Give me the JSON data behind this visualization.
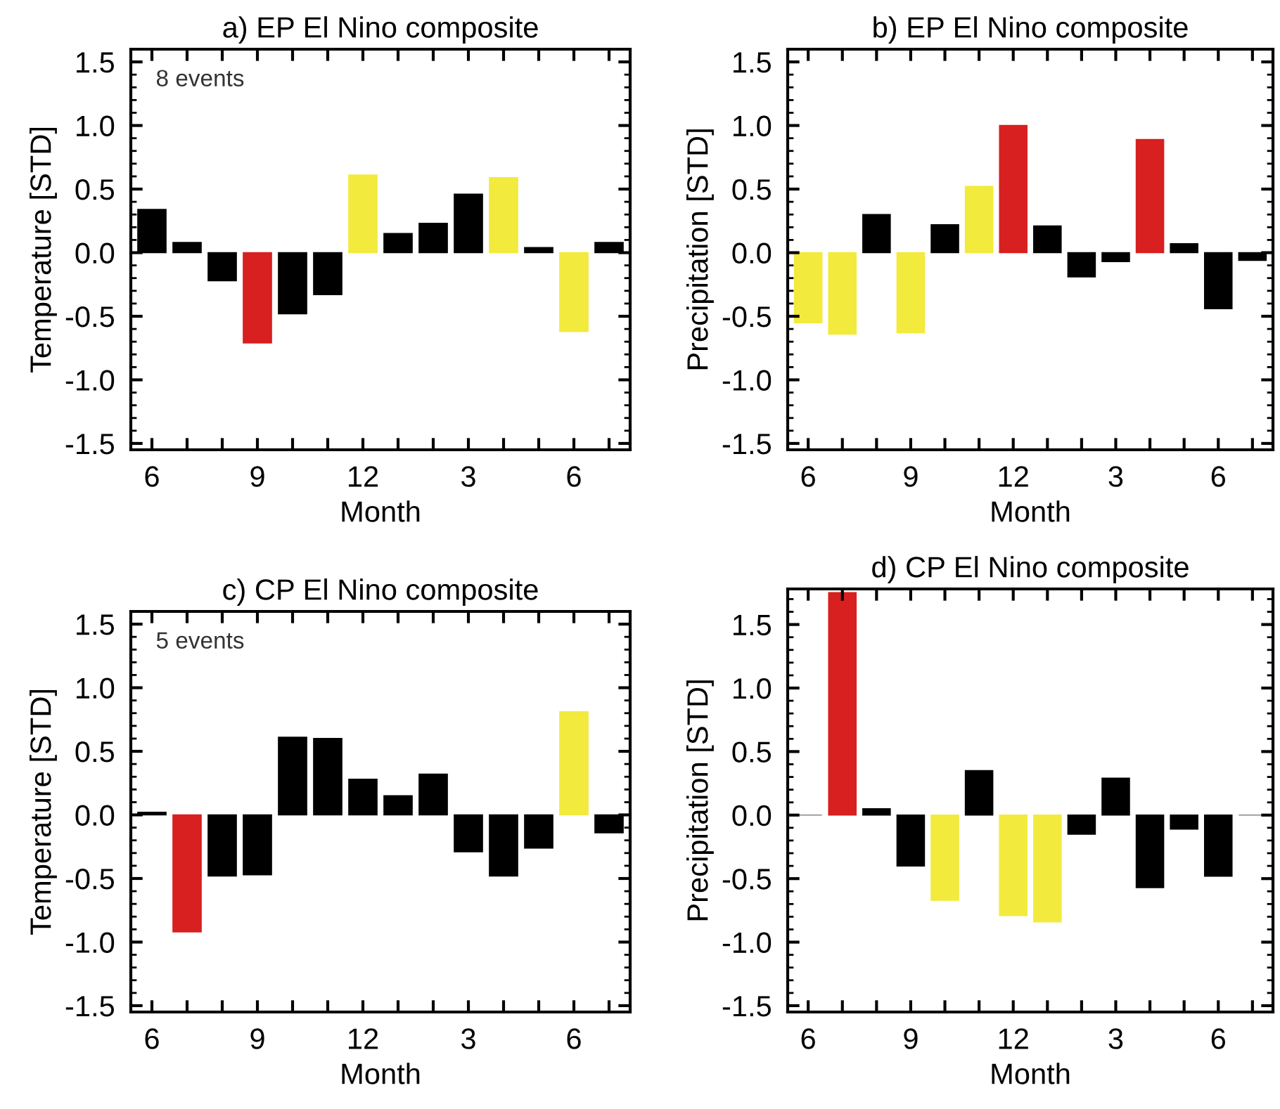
{
  "chart_data": [
    {
      "type": "bar",
      "title": "a) EP El Nino composite",
      "xlabel": "Month",
      "ylabel": "Temperature [STD]",
      "annotations": [
        "8 events"
      ],
      "categories": [
        "6",
        null,
        null,
        "9",
        null,
        null,
        "12",
        null,
        null,
        "3",
        null,
        null,
        "6",
        null
      ],
      "values": [
        0.34,
        0.08,
        -0.22,
        -0.71,
        -0.48,
        -0.33,
        0.61,
        0.15,
        0.23,
        0.46,
        0.59,
        0.04,
        -0.62,
        0.08
      ],
      "colors": [
        "#000000",
        "#000000",
        "#000000",
        "#d7201f",
        "#000000",
        "#000000",
        "#f2ea3c",
        "#000000",
        "#000000",
        "#000000",
        "#f2ea3c",
        "#000000",
        "#f2ea3c",
        "#000000"
      ],
      "ylim": [
        -1.55,
        1.6
      ],
      "yticks": [
        -1.5,
        {
          "value": -1,
          "label": "-1.0"
        },
        -0.5,
        {
          "value": 0,
          "label": "0.0"
        },
        0.5,
        {
          "value": 1,
          "label": "1.0"
        },
        1.5
      ],
      "grid": false,
      "legend": false
    },
    {
      "type": "bar",
      "title": "b) EP El Nino composite",
      "xlabel": "Month",
      "ylabel": "Precipitation [STD]",
      "categories": [
        "6",
        null,
        null,
        "9",
        null,
        null,
        "12",
        null,
        null,
        "3",
        null,
        null,
        "6",
        null
      ],
      "values": [
        -0.55,
        -0.64,
        0.3,
        -0.63,
        0.22,
        0.52,
        1.0,
        0.21,
        -0.19,
        -0.07,
        0.89,
        0.07,
        -0.44,
        -0.06
      ],
      "colors": [
        "#f2ea3c",
        "#f2ea3c",
        "#000000",
        "#f2ea3c",
        "#000000",
        "#f2ea3c",
        "#d7201f",
        "#000000",
        "#000000",
        "#000000",
        "#d7201f",
        "#000000",
        "#000000",
        "#000000"
      ],
      "ylim": [
        -1.55,
        1.6
      ],
      "yticks": [
        -1.5,
        {
          "value": -1,
          "label": "-1.0"
        },
        -0.5,
        {
          "value": 0,
          "label": "0.0"
        },
        0.5,
        {
          "value": 1,
          "label": "1.0"
        },
        1.5
      ],
      "grid": false,
      "legend": false
    },
    {
      "type": "bar",
      "title": "c) CP El Nino composite",
      "xlabel": "Month",
      "ylabel": "Temperature [STD]",
      "annotations": [
        "5 events"
      ],
      "categories": [
        "6",
        null,
        null,
        "9",
        null,
        null,
        "12",
        null,
        null,
        "3",
        null,
        null,
        "6",
        null
      ],
      "values": [
        0.02,
        -0.92,
        -0.48,
        -0.47,
        0.61,
        0.6,
        0.28,
        0.15,
        0.32,
        -0.29,
        -0.48,
        -0.26,
        0.81,
        -0.14
      ],
      "colors": [
        "#000000",
        "#d7201f",
        "#000000",
        "#000000",
        "#000000",
        "#000000",
        "#000000",
        "#000000",
        "#000000",
        "#000000",
        "#000000",
        "#000000",
        "#f2ea3c",
        "#000000"
      ],
      "ylim": [
        -1.55,
        1.6
      ],
      "yticks": [
        -1.5,
        {
          "value": -1,
          "label": "-1.0"
        },
        -0.5,
        {
          "value": 0,
          "label": "0.0"
        },
        0.5,
        {
          "value": 1,
          "label": "1.0"
        },
        1.5
      ],
      "grid": false,
      "legend": false
    },
    {
      "type": "bar",
      "title": "d) CP El Nino composite",
      "xlabel": "Month",
      "ylabel": "Precipitation [STD]",
      "categories": [
        "6",
        null,
        null,
        "9",
        null,
        null,
        "12",
        null,
        null,
        "3",
        null,
        null,
        "6",
        null
      ],
      "values": [
        0.0,
        1.75,
        0.05,
        -0.4,
        -0.67,
        0.35,
        -0.79,
        -0.84,
        -0.15,
        0.29,
        -0.57,
        -0.11,
        -0.48,
        0.0
      ],
      "colors": [
        "#888888",
        "#d7201f",
        "#000000",
        "#000000",
        "#f2ea3c",
        "#000000",
        "#f2ea3c",
        "#f2ea3c",
        "#000000",
        "#000000",
        "#000000",
        "#000000",
        "#000000",
        "#888888"
      ],
      "ylim": [
        -1.55,
        1.78
      ],
      "yticks": [
        -1.5,
        {
          "value": -1,
          "label": "-1.0"
        },
        -0.5,
        {
          "value": 0,
          "label": "0.0"
        },
        0.5,
        {
          "value": 1,
          "label": "1.0"
        },
        1.5
      ],
      "grid": false,
      "legend": false
    }
  ]
}
